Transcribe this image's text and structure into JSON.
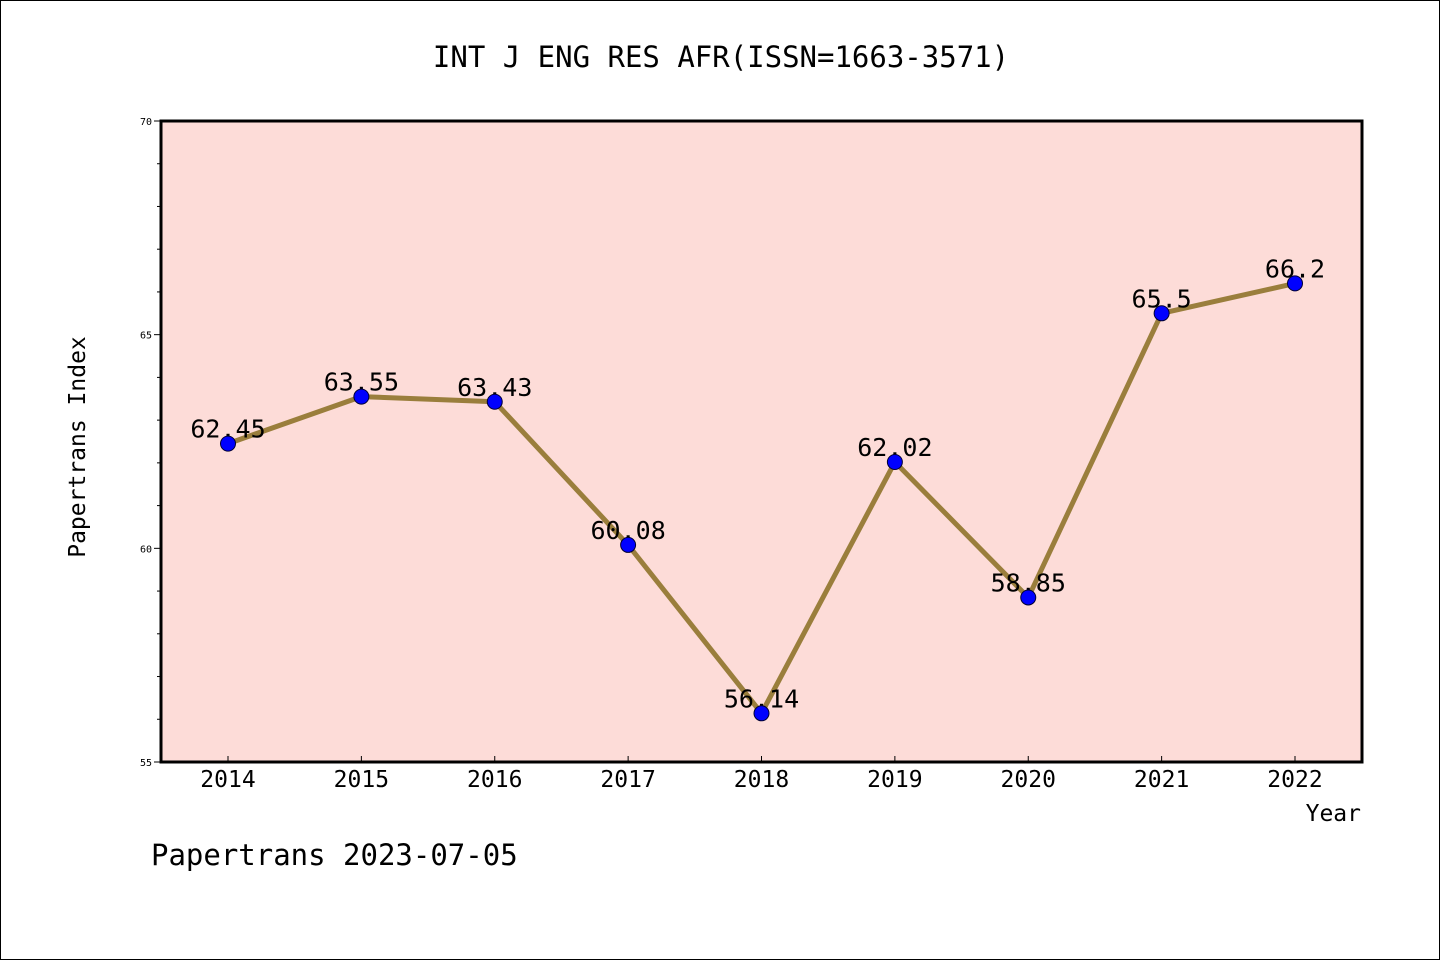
{
  "chart_data": {
    "type": "line",
    "title": "INT J ENG RES AFR(ISSN=1663-3571)",
    "xlabel": "Year",
    "ylabel": "Papertrans Index",
    "categories": [
      "2014",
      "2015",
      "2016",
      "2017",
      "2018",
      "2019",
      "2020",
      "2021",
      "2022"
    ],
    "series": [
      {
        "values": [
          62.45,
          63.55,
          63.43,
          60.08,
          56.14,
          62.02,
          58.85,
          65.5,
          66.2
        ],
        "labels": [
          "62.45",
          "63.55",
          "63.43",
          "60.08",
          "56.14",
          "62.02",
          "58.85",
          "65.5",
          "66.2"
        ]
      }
    ],
    "ylim": [
      55,
      70
    ],
    "yticks": [
      "55",
      "60",
      "65",
      "70"
    ],
    "grid": false,
    "colors": {
      "plot_background": "#fddcd8",
      "line": "#9a7e3c",
      "marker": "#0000ff"
    }
  },
  "footer": {
    "watermark": "Papertrans 2023-07-05"
  }
}
